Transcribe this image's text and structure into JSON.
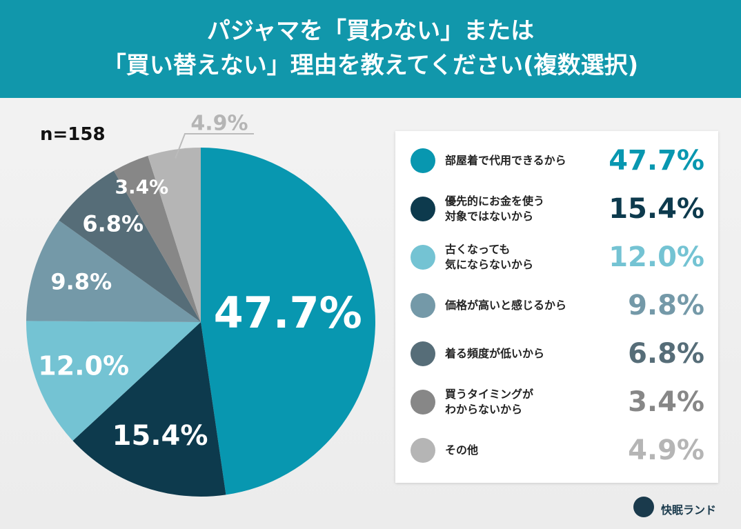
{
  "chart_data": {
    "type": "pie",
    "title": [
      "パジャマを「買わない」または",
      "「買い替えない」理由を教えてください(複数選択)"
    ],
    "note": "n=158",
    "brand": "快眠ランド",
    "categories": [
      "部屋着で代用できるから",
      "優先的にお金を使う\n対象ではないから",
      "古くなっても\n気にならないから",
      "価格が高いと感じるから",
      "着る頻度が低いから",
      "買うタイミングが\nわからないから",
      "その他"
    ],
    "values": [
      47.7,
      15.4,
      12.0,
      9.8,
      6.8,
      3.4,
      4.9
    ],
    "value_labels": [
      "47.7%",
      "15.4%",
      "12.0%",
      "9.8%",
      "6.8%",
      "3.4%",
      "4.9%"
    ],
    "colors": [
      "#0897b0",
      "#0d3a4d",
      "#74c3d3",
      "#7499a8",
      "#566d78",
      "#878787",
      "#b5b5b5"
    ]
  }
}
